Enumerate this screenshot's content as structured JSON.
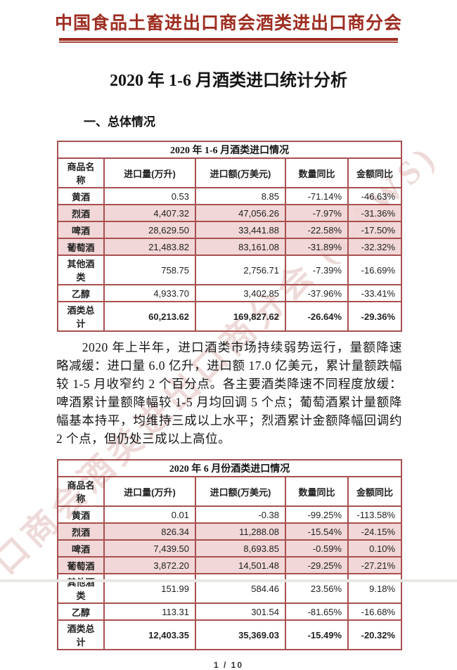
{
  "page": {
    "banner": "中国食品土畜进出口商会酒类进出口商分会",
    "title": "2020 年 1-6 月酒类进口统计分析",
    "section_heading": "一、总体情况",
    "page_number": "1 / 10"
  },
  "watermark_text": "口商会酒类进出口商分会 (CAWS)",
  "colors": {
    "banner_red": "#9e2d22",
    "table_border": "#a85050",
    "shaded_row_pink": "#f0d4d4",
    "watermark_pink": "rgba(196,132,128,0.30)"
  },
  "paragraph": "2020 年上半年，进口酒类市场持续弱势运行，量额降速略减缓：进口量 6.0 亿升，进口额 17.0 亿美元，累计量额跌幅较 1-5 月收窄约 2 个百分点。各主要酒类降速不同程度放缓：啤酒累计量额降幅较 1-5 月均回调 5 个点；葡萄酒累计量额降幅基本持平，均维持三成以上水平；烈酒累计金额降幅回调约 2 个点，但仍处三成以上高位。",
  "tables": [
    {
      "title": "2020 年 1-6 月酒类进口情况",
      "headers": [
        "商品名称",
        "进口量(万升)",
        "进口额(万美元)",
        "数量同比",
        "金额同比"
      ],
      "rows": [
        {
          "cells": [
            "黄酒",
            "0.53",
            "8.85",
            "-71.14%",
            "-46.63%"
          ],
          "shaded": false,
          "total": false
        },
        {
          "cells": [
            "烈酒",
            "4,407.32",
            "47,056.26",
            "-7.97%",
            "-31.36%"
          ],
          "shaded": true,
          "total": false
        },
        {
          "cells": [
            "啤酒",
            "28,629.50",
            "33,441.88",
            "-22.58%",
            "-17.50%"
          ],
          "shaded": true,
          "total": false
        },
        {
          "cells": [
            "葡萄酒",
            "21,483.82",
            "83,161.08",
            "-31.89%",
            "-32.32%"
          ],
          "shaded": true,
          "total": false
        },
        {
          "cells": [
            "其他酒类",
            "758.75",
            "2,756.71",
            "-7.39%",
            "-16.69%"
          ],
          "shaded": false,
          "total": false
        },
        {
          "cells": [
            "乙醇",
            "4,933.70",
            "3,402.85",
            "-37.96%",
            "-33.41%"
          ],
          "shaded": false,
          "total": false
        },
        {
          "cells": [
            "酒类总计",
            "60,213.62",
            "169,827.62",
            "-26.64%",
            "-29.36%"
          ],
          "shaded": false,
          "total": true
        }
      ]
    },
    {
      "title": "2020 年 6 月份酒类进口情况",
      "headers": [
        "商品名称",
        "进口量(万升)",
        "进口额(万美元)",
        "数量同比",
        "金额同比"
      ],
      "rows": [
        {
          "cells": [
            "黄酒",
            "0.01",
            "-0.38",
            "-99.25%",
            "-113.58%"
          ],
          "shaded": false,
          "total": false
        },
        {
          "cells": [
            "烈酒",
            "826.34",
            "11,288.08",
            "-15.54%",
            "-24.15%"
          ],
          "shaded": true,
          "total": false
        },
        {
          "cells": [
            "啤酒",
            "7,439.50",
            "8,693.85",
            "-0.59%",
            "0.10%"
          ],
          "shaded": true,
          "total": false
        },
        {
          "cells": [
            "葡萄酒",
            "3,872.20",
            "14,501.48",
            "-29.25%",
            "-27.21%"
          ],
          "shaded": true,
          "total": false
        },
        {
          "cells": [
            "其他酒类",
            "151.99",
            "584.46",
            "23.56%",
            "9.18%"
          ],
          "shaded": false,
          "total": false
        },
        {
          "cells": [
            "乙醇",
            "113.31",
            "301.54",
            "-81.65%",
            "-16.68%"
          ],
          "shaded": false,
          "total": false
        },
        {
          "cells": [
            "酒类总计",
            "12,403.35",
            "35,369.03",
            "-15.49%",
            "-20.32%"
          ],
          "shaded": false,
          "total": true
        }
      ]
    }
  ]
}
